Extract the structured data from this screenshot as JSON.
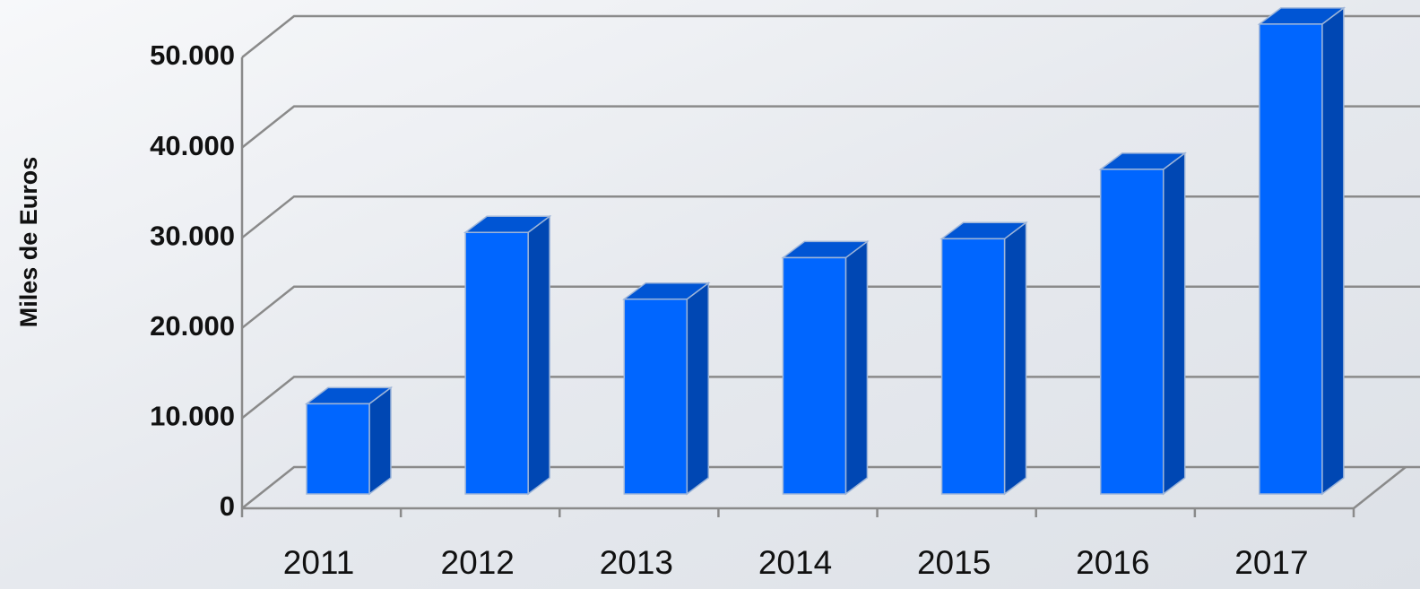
{
  "chart_data": {
    "type": "bar",
    "y_label": "Miles de Euros",
    "categories": [
      "2011",
      "2012",
      "2013",
      "2014",
      "2015",
      "2016",
      "2017"
    ],
    "values": [
      10000,
      29000,
      21600,
      26200,
      28300,
      36000,
      52100
    ],
    "color": "#0066ff",
    "ylim": [
      0,
      50000
    ],
    "yticks": [
      0,
      {
        "value": 10000,
        "label": "10.000"
      },
      {
        "value": 20000,
        "label": "20.000"
      },
      {
        "value": 30000,
        "label": "30.000"
      },
      {
        "value": 40000,
        "label": "40.000"
      },
      {
        "value": 50000,
        "label": "50.000"
      }
    ],
    "grid": true
  }
}
